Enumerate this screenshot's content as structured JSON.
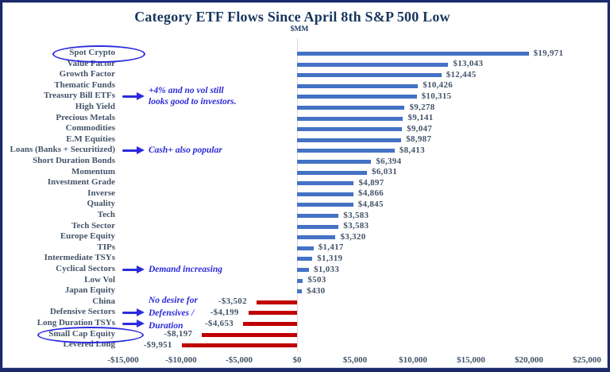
{
  "title": "Category ETF Flows Since April 8th S&P 500 Low",
  "subtitle": "$MM",
  "colors": {
    "bar_positive": "#4472C4",
    "bar_negative": "#C00000",
    "title_text": "#17365D",
    "label_text": "#44546A",
    "annotation_text": "#2B2BD9",
    "border": "#1B2A6B",
    "zero_gridline": "#D9D9D9"
  },
  "chart_data": {
    "type": "bar",
    "orientation": "horizontal",
    "units": "$MM",
    "title": "Category ETF Flows Since April 8th S&P 500 Low",
    "xlim": [
      -15000,
      25000
    ],
    "grid": "zero-line-only",
    "legend": "none",
    "categories": [
      "Spot Crypto",
      "Value Factor",
      "Growth Factor",
      "Thematic Funds",
      "Treasury Bill ETFs",
      "High Yield",
      "Precious Metals",
      "Commodities",
      "E.M Equities",
      "Loans (Banks + Securitized)",
      "Short Duration Bonds",
      "Momentum",
      "Investment Grade",
      "Inverse",
      "Quality",
      "Tech",
      "Tech Sector",
      "Europe Equity",
      "TIPs",
      "Intermediate TSYs",
      "Cyclical Sectors",
      "Low Vol",
      "Japan Equity",
      "China",
      "Defensive Sectors",
      "Long Duration TSYs",
      "Small Cap Equity",
      "Levered Long"
    ],
    "values": [
      19971,
      13043,
      12445,
      10426,
      10315,
      9278,
      9141,
      9047,
      8987,
      8413,
      6394,
      6031,
      4897,
      4866,
      4845,
      3583,
      3583,
      3320,
      1417,
      1319,
      1033,
      503,
      430,
      -3502,
      -4199,
      -4653,
      -8197,
      -9951
    ],
    "value_labels": [
      "$19,971",
      "$13,043",
      "$12,445",
      "$10,426",
      "$10,315",
      "$9,278",
      "$9,141",
      "$9,047",
      "$8,987",
      "$8,413",
      "$6,394",
      "$6,031",
      "$4,897",
      "$4,866",
      "$4,845",
      "$3,583",
      "$3,583",
      "$3,320",
      "$1,417",
      "$1,319",
      "$1,033",
      "$503",
      "$430",
      "-$3,502",
      "-$4,199",
      "-$4,653",
      "-$8,197",
      "-$9,951"
    ],
    "x_tick_values": [
      -15000,
      -10000,
      -5000,
      0,
      5000,
      10000,
      15000,
      20000,
      25000
    ],
    "x_tick_labels": [
      "-$15,000",
      "-$10,000",
      "-$5,000",
      "$0",
      "$5,000",
      "$10,000",
      "$15,000",
      "$20,000",
      "$25,000"
    ]
  },
  "annotations": [
    {
      "type": "ellipse",
      "row": 0,
      "target": "Spot Crypto"
    },
    {
      "type": "callout",
      "row": 4,
      "target": "Treasury Bill ETFs",
      "lines": [
        "+4% and no vol still",
        "looks good to investors."
      ]
    },
    {
      "type": "callout",
      "row": 9,
      "target": "Loans (Banks + Securitized)",
      "lines": [
        "Cash+ also popular"
      ]
    },
    {
      "type": "callout",
      "row": 20,
      "target": "Cyclical Sectors",
      "lines": [
        "Demand increasing"
      ]
    },
    {
      "type": "textblock",
      "row": 23,
      "lines": [
        "No desire for",
        "Defensives /",
        "Duration"
      ]
    },
    {
      "type": "arrow",
      "row": 24,
      "target": "Defensive Sectors"
    },
    {
      "type": "arrow",
      "row": 25,
      "target": "Long Duration TSYs"
    },
    {
      "type": "ellipse",
      "row": 26,
      "target": "Small Cap Equity"
    }
  ]
}
